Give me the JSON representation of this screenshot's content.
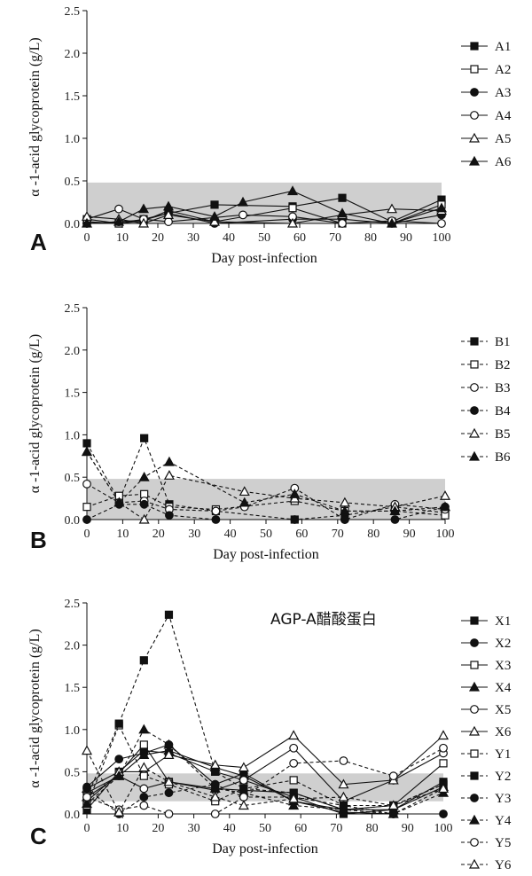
{
  "chart_data": [
    {
      "type": "line",
      "panel": "A",
      "xlabel": "Day post-infection",
      "ylabel": "α -1-acid glycoprotein (g/L)",
      "xlim": [
        0,
        100
      ],
      "ylim": [
        0,
        2.5
      ],
      "xticks": [
        0,
        10,
        20,
        30,
        40,
        50,
        60,
        70,
        80,
        90,
        100
      ],
      "yticks": [
        "0.0",
        "0.5",
        "1.0",
        "1.5",
        "2.0",
        "2.5"
      ],
      "reference_band": [
        0,
        0.48
      ],
      "reference_band_color": "#cfcfcf",
      "legend_position": "right",
      "series": [
        {
          "name": "A1",
          "style": "solid",
          "marker": "square-filled",
          "x": [
            0,
            9,
            16,
            23,
            36,
            58,
            72,
            86,
            100
          ],
          "y": [
            0.02,
            0.0,
            0.05,
            0.12,
            0.22,
            0.2,
            0.3,
            0.02,
            0.28
          ]
        },
        {
          "name": "A2",
          "style": "solid",
          "marker": "square-open",
          "x": [
            0,
            9,
            16,
            23,
            36,
            58,
            72,
            86,
            100
          ],
          "y": [
            0.05,
            0.0,
            0.03,
            0.15,
            0.02,
            0.18,
            0.0,
            0.0,
            0.22
          ]
        },
        {
          "name": "A3",
          "style": "solid",
          "marker": "circle-filled",
          "x": [
            0,
            9,
            16,
            23,
            36,
            58,
            72,
            86,
            100
          ],
          "y": [
            0.0,
            0.02,
            0.04,
            0.12,
            0.0,
            0.05,
            0.05,
            0.0,
            0.1
          ]
        },
        {
          "name": "A4",
          "style": "solid",
          "marker": "circle-open",
          "x": [
            0,
            9,
            16,
            23,
            44,
            58,
            72,
            86,
            100
          ],
          "y": [
            0.05,
            0.17,
            0.05,
            0.02,
            0.1,
            0.08,
            0.0,
            0.03,
            0.0
          ]
        },
        {
          "name": "A5",
          "style": "solid",
          "marker": "triangle-open",
          "x": [
            0,
            9,
            16,
            23,
            36,
            58,
            72,
            86,
            100
          ],
          "y": [
            0.08,
            0.05,
            0.0,
            0.1,
            0.02,
            0.0,
            0.1,
            0.17,
            0.15
          ]
        },
        {
          "name": "A6",
          "style": "solid",
          "marker": "triangle-filled",
          "x": [
            0,
            9,
            16,
            23,
            36,
            44,
            58,
            72,
            86,
            100
          ],
          "y": [
            0.0,
            0.02,
            0.17,
            0.2,
            0.08,
            0.25,
            0.38,
            0.12,
            0.0,
            0.18
          ]
        }
      ]
    },
    {
      "type": "line",
      "panel": "B",
      "xlabel": "Day post-infection",
      "ylabel": "α -1-acid glycoprotein (g/L)",
      "xlim": [
        0,
        100
      ],
      "ylim": [
        0,
        2.5
      ],
      "xticks": [
        0,
        10,
        20,
        30,
        40,
        50,
        60,
        70,
        80,
        90,
        100
      ],
      "yticks": [
        "0.0",
        "0.5",
        "1.0",
        "1.5",
        "2.0",
        "2.5"
      ],
      "reference_band": [
        0,
        0.48
      ],
      "reference_band_color": "#cfcfcf",
      "legend_position": "right",
      "series": [
        {
          "name": "B1",
          "style": "dashed",
          "marker": "square-filled",
          "x": [
            0,
            9,
            16,
            23,
            36,
            58,
            72,
            86,
            100
          ],
          "y": [
            0.9,
            0.22,
            0.96,
            0.18,
            0.1,
            0.0,
            0.05,
            0.15,
            0.08
          ]
        },
        {
          "name": "B2",
          "style": "dashed",
          "marker": "square-open",
          "x": [
            0,
            9,
            16,
            23,
            36,
            58,
            72,
            86,
            100
          ],
          "y": [
            0.15,
            0.28,
            0.3,
            0.15,
            0.12,
            0.22,
            0.1,
            0.1,
            0.05
          ]
        },
        {
          "name": "B3",
          "style": "dashed",
          "marker": "circle-open",
          "x": [
            0,
            9,
            16,
            23,
            36,
            44,
            58,
            72,
            86,
            100
          ],
          "y": [
            0.42,
            0.2,
            0.22,
            0.12,
            0.1,
            0.15,
            0.37,
            0.0,
            0.18,
            0.12
          ]
        },
        {
          "name": "B4",
          "style": "dashed",
          "marker": "circle-filled",
          "x": [
            0,
            9,
            16,
            23,
            36,
            58,
            72,
            86,
            100
          ],
          "y": [
            0.0,
            0.18,
            0.18,
            0.05,
            0.0,
            0.0,
            0.0,
            0.0,
            0.15
          ]
        },
        {
          "name": "B5",
          "style": "dashed",
          "marker": "triangle-open",
          "x": [
            0,
            9,
            16,
            23,
            44,
            58,
            72,
            86,
            100
          ],
          "y": [
            0.8,
            0.2,
            0.0,
            0.52,
            0.33,
            0.25,
            0.2,
            0.15,
            0.28
          ]
        },
        {
          "name": "B6",
          "style": "dashed",
          "marker": "triangle-filled",
          "x": [
            0,
            9,
            16,
            23,
            44,
            58,
            72,
            86,
            100
          ],
          "y": [
            0.8,
            0.2,
            0.5,
            0.68,
            0.2,
            0.3,
            0.1,
            0.1,
            0.15
          ]
        }
      ]
    },
    {
      "type": "line",
      "panel": "C",
      "annotation": "AGP-A醋酸蛋白",
      "xlabel": "Day post-infection",
      "ylabel": "α -1-acid glycoprotein (g/L)",
      "xlim": [
        0,
        100
      ],
      "ylim": [
        0,
        2.5
      ],
      "xticks": [
        0,
        10,
        20,
        30,
        40,
        50,
        60,
        70,
        80,
        90,
        100
      ],
      "yticks": [
        "0.0",
        "0.5",
        "1.0",
        "1.5",
        "2.0",
        "2.5"
      ],
      "reference_band": [
        0.15,
        0.48
      ],
      "reference_band_color": "#cfcfcf",
      "legend_position": "right",
      "series": [
        {
          "name": "X1",
          "style": "solid",
          "marker": "square-filled",
          "x": [
            0,
            9,
            16,
            23,
            36,
            44,
            58,
            72,
            86,
            100
          ],
          "y": [
            0.05,
            0.5,
            0.75,
            0.72,
            0.5,
            0.4,
            0.2,
            0.0,
            0.05,
            0.38
          ]
        },
        {
          "name": "X2",
          "style": "solid",
          "marker": "circle-filled",
          "x": [
            0,
            9,
            16,
            23,
            36,
            44,
            58,
            72,
            86,
            100
          ],
          "y": [
            0.32,
            0.65,
            0.72,
            0.82,
            0.35,
            0.48,
            0.15,
            0.02,
            0.0,
            0.0
          ]
        },
        {
          "name": "X3",
          "style": "solid",
          "marker": "square-open",
          "x": [
            0,
            9,
            16,
            23,
            36,
            44,
            58,
            72,
            86,
            100
          ],
          "y": [
            0.15,
            0.48,
            0.82,
            0.38,
            0.3,
            0.28,
            0.25,
            0.05,
            0.1,
            0.6
          ]
        },
        {
          "name": "X4",
          "style": "solid",
          "marker": "triangle-filled",
          "x": [
            0,
            9,
            16,
            23,
            36,
            44,
            58,
            72,
            86,
            100
          ],
          "y": [
            0.2,
            0.45,
            0.7,
            0.75,
            0.55,
            0.45,
            0.15,
            0.05,
            0.05,
            0.32
          ]
        },
        {
          "name": "X5",
          "style": "solid",
          "marker": "circle-open",
          "x": [
            0,
            9,
            16,
            23,
            36,
            44,
            58,
            72,
            86,
            100
          ],
          "y": [
            0.25,
            0.45,
            0.3,
            0.38,
            0.28,
            0.4,
            0.78,
            0.15,
            0.4,
            0.72
          ]
        },
        {
          "name": "X6",
          "style": "solid",
          "marker": "triangle-open",
          "x": [
            0,
            9,
            16,
            23,
            36,
            44,
            58,
            72,
            86,
            100
          ],
          "y": [
            0.3,
            0.5,
            0.5,
            0.7,
            0.58,
            0.55,
            0.93,
            0.35,
            0.4,
            0.93
          ]
        },
        {
          "name": "Y1",
          "style": "dashed",
          "marker": "square-open",
          "x": [
            0,
            9,
            16,
            23,
            36,
            44,
            58,
            72,
            86,
            100
          ],
          "y": [
            0.1,
            1.05,
            0.45,
            0.35,
            0.15,
            0.3,
            0.4,
            0.1,
            0.1,
            0.35
          ]
        },
        {
          "name": "Y2",
          "style": "dashed",
          "marker": "square-filled",
          "x": [
            0,
            9,
            16,
            23,
            36,
            44,
            58,
            72,
            86,
            100
          ],
          "y": [
            0.2,
            1.07,
            1.82,
            2.36,
            0.5,
            0.3,
            0.25,
            0.05,
            0.1,
            0.35
          ]
        },
        {
          "name": "Y3",
          "style": "dashed",
          "marker": "circle-filled",
          "x": [
            0,
            9,
            16,
            23,
            36,
            44,
            58,
            72,
            86,
            100
          ],
          "y": [
            0.3,
            0.0,
            0.2,
            0.25,
            0.35,
            0.2,
            0.2,
            0.1,
            0.0,
            0.3
          ]
        },
        {
          "name": "Y4",
          "style": "dashed",
          "marker": "triangle-filled",
          "x": [
            0,
            9,
            16,
            23,
            36,
            44,
            58,
            72,
            86,
            100
          ],
          "y": [
            0.12,
            0.45,
            1.0,
            0.82,
            0.3,
            0.25,
            0.1,
            0.05,
            0.0,
            0.25
          ]
        },
        {
          "name": "Y5",
          "style": "dashed",
          "marker": "circle-open",
          "x": [
            0,
            9,
            16,
            23,
            36,
            44,
            58,
            72,
            86,
            100
          ],
          "y": [
            0.2,
            0.05,
            0.1,
            0.0,
            0.0,
            0.2,
            0.6,
            0.63,
            0.45,
            0.78
          ]
        },
        {
          "name": "Y6",
          "style": "dashed",
          "marker": "triangle-open",
          "x": [
            0,
            9,
            16,
            23,
            36,
            44,
            58,
            72,
            86,
            100
          ],
          "y": [
            0.75,
            0.02,
            0.55,
            0.38,
            0.2,
            0.1,
            0.18,
            0.2,
            0.1,
            0.3
          ]
        }
      ]
    }
  ]
}
